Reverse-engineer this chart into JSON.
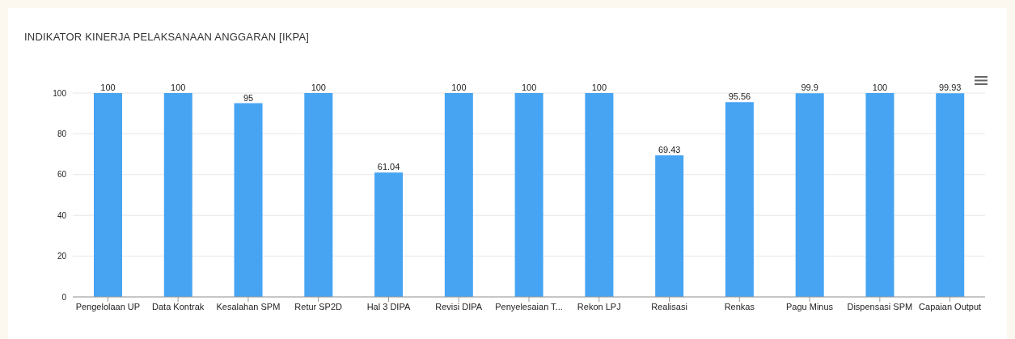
{
  "chart_data": {
    "type": "bar",
    "title": "INDIKATOR KINERJA PELAKSANAAN ANGGARAN [IKPA]",
    "categories": [
      "Pengelolaan UP",
      "Data Kontrak",
      "Kesalahan SPM",
      "Retur SP2D",
      "Hal 3 DIPA",
      "Revisi DIPA",
      "Penyelesaian T...",
      "Rekon LPJ",
      "Realisasi",
      "Renkas",
      "Pagu Minus",
      "Dispensasi SPM",
      "Capaian Output"
    ],
    "values": [
      100,
      100,
      95,
      100,
      61.04,
      100,
      100,
      100,
      69.43,
      95.56,
      99.9,
      100,
      99.93
    ],
    "color": "#46a4f3",
    "ylim": [
      0,
      100
    ],
    "yticks": [
      0,
      20,
      40,
      60,
      80,
      100
    ],
    "grid": "y",
    "data_labels": true
  }
}
